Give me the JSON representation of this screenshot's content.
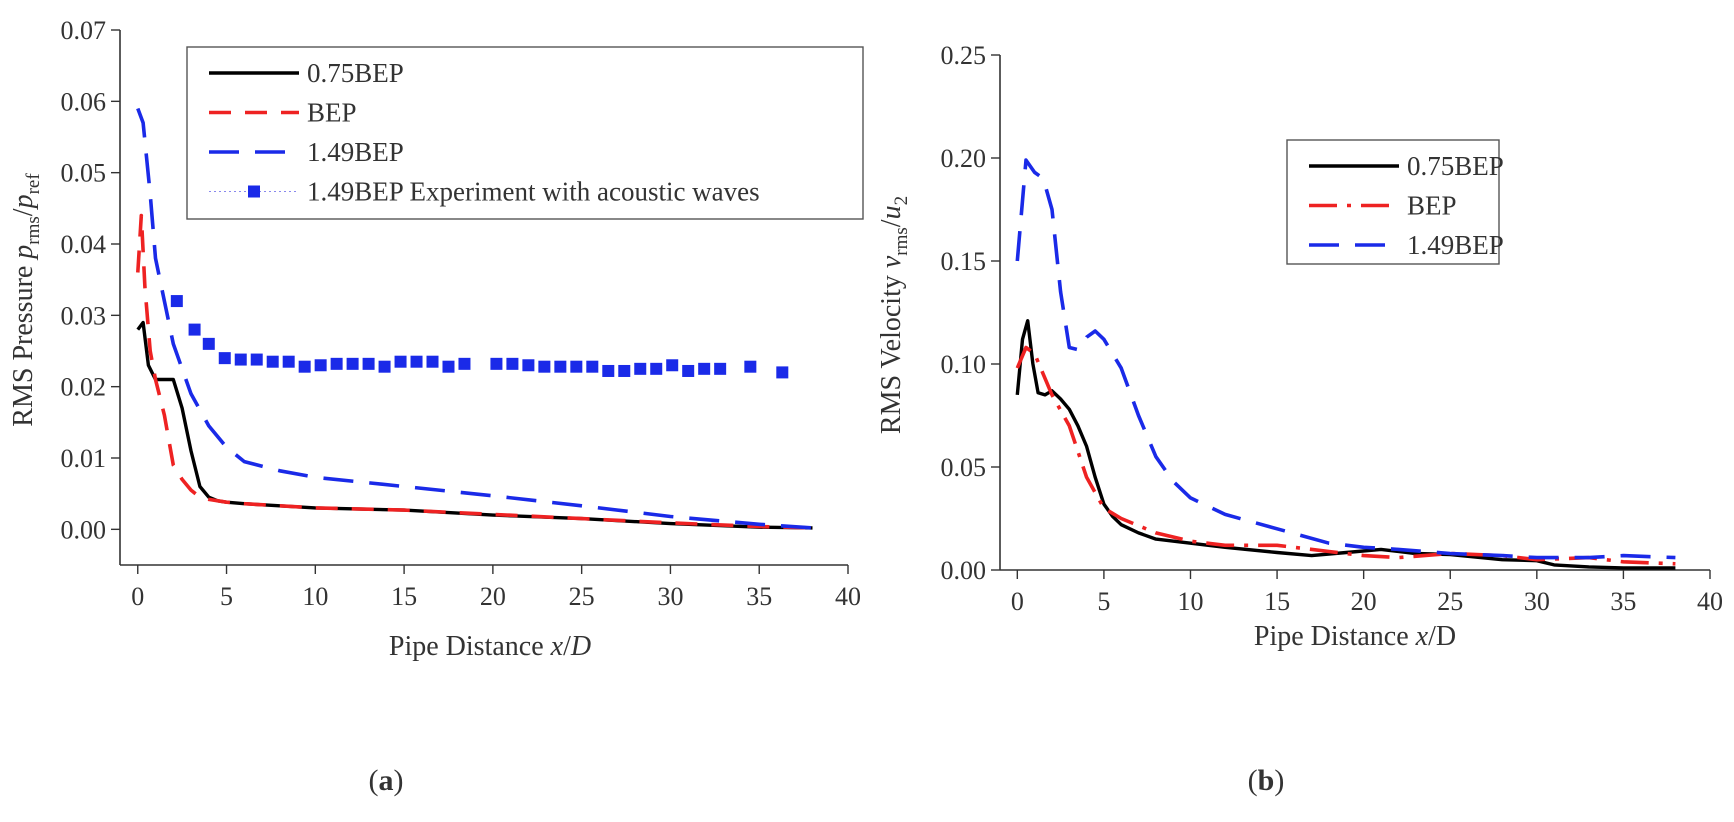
{
  "chart_data": [
    {
      "type": "line",
      "panel_label": "a",
      "xlabel": {
        "prefix": "Pipe Distance ",
        "var": "x",
        "sep": "/",
        "unit": "D"
      },
      "ylabel": {
        "prefix": "RMS Pressure ",
        "var1": "p",
        "sub1": "rms",
        "sep": "/",
        "var2": "p",
        "sub2": "ref"
      },
      "xlim": [
        -1,
        40
      ],
      "ylim": [
        -0.005,
        0.07
      ],
      "xticks": [
        "0",
        "5",
        "10",
        "15",
        "20",
        "25",
        "30",
        "35",
        "40"
      ],
      "yticks": [
        "0.00",
        "0.01",
        "0.02",
        "0.03",
        "0.04",
        "0.05",
        "0.06",
        "0.07"
      ],
      "legend_position": "top-right",
      "series": [
        {
          "name": "0.75BEP",
          "color": "#000000",
          "style": "solid",
          "x": [
            0,
            0.3,
            0.6,
            1.0,
            1.5,
            2.0,
            2.5,
            3.0,
            3.5,
            4.0,
            4.5,
            5,
            6,
            8,
            10,
            15,
            20,
            25,
            30,
            35,
            38
          ],
          "y": [
            0.028,
            0.029,
            0.023,
            0.021,
            0.021,
            0.021,
            0.017,
            0.011,
            0.006,
            0.0045,
            0.004,
            0.0038,
            0.0036,
            0.0033,
            0.003,
            0.0027,
            0.002,
            0.0015,
            0.0008,
            0.0003,
            0.0002
          ]
        },
        {
          "name": "BEP",
          "color": "#ee2222",
          "style": "dash",
          "x": [
            0,
            0.2,
            0.4,
            0.7,
            1.0,
            1.5,
            2.0,
            2.5,
            3.0,
            3.5,
            4,
            5,
            6,
            8,
            10,
            15,
            20,
            25,
            30,
            35,
            38
          ],
          "y": [
            0.036,
            0.044,
            0.034,
            0.025,
            0.021,
            0.016,
            0.009,
            0.007,
            0.0055,
            0.0045,
            0.0042,
            0.0038,
            0.0036,
            0.0033,
            0.003,
            0.0027,
            0.0021,
            0.0015,
            0.0009,
            0.0004,
            0.0002
          ]
        },
        {
          "name": "1.49BEP",
          "color": "#1a2ae8",
          "style": "longdash",
          "x": [
            0,
            0.3,
            0.7,
            1.0,
            1.5,
            2.0,
            3.0,
            4.0,
            5,
            6,
            8,
            10,
            15,
            20,
            25,
            30,
            35,
            38
          ],
          "y": [
            0.059,
            0.057,
            0.047,
            0.038,
            0.032,
            0.026,
            0.019,
            0.0145,
            0.0115,
            0.0095,
            0.0082,
            0.0073,
            0.006,
            0.0047,
            0.0033,
            0.0018,
            0.0007,
            0.0002
          ]
        },
        {
          "name": "1.49BEP Experiment with acoustic waves",
          "color": "#1a2ae8",
          "style": "markers",
          "x": [
            2.2,
            3.2,
            4.0,
            4.9,
            5.8,
            6.7,
            7.6,
            8.5,
            9.4,
            10.3,
            11.2,
            12.1,
            13.0,
            13.9,
            14.8,
            15.7,
            16.6,
            17.5,
            18.4,
            20.2,
            21.1,
            22.0,
            22.9,
            23.8,
            24.7,
            25.6,
            26.5,
            27.4,
            28.3,
            29.2,
            30.1,
            31.0,
            31.9,
            32.8,
            34.5,
            36.3
          ],
          "y": [
            0.032,
            0.028,
            0.026,
            0.024,
            0.0238,
            0.0238,
            0.0235,
            0.0235,
            0.0228,
            0.023,
            0.0232,
            0.0232,
            0.0232,
            0.0228,
            0.0235,
            0.0235,
            0.0235,
            0.0228,
            0.0232,
            0.0232,
            0.0232,
            0.023,
            0.0228,
            0.0228,
            0.0228,
            0.0228,
            0.0222,
            0.0222,
            0.0225,
            0.0225,
            0.023,
            0.0222,
            0.0225,
            0.0225,
            0.0228,
            0.022
          ]
        }
      ]
    },
    {
      "type": "line",
      "panel_label": "b",
      "xlabel": {
        "prefix": "Pipe Distance ",
        "var": "x",
        "sep": "/",
        "unit": "D"
      },
      "ylabel": {
        "prefix": "RMS Velocity ",
        "var1": "v",
        "sub1": "rms",
        "sep": "/",
        "var2": "u",
        "sub2": "2"
      },
      "xlim": [
        -1,
        40
      ],
      "ylim": [
        0,
        0.25
      ],
      "xticks": [
        "0",
        "5",
        "10",
        "15",
        "20",
        "25",
        "30",
        "35",
        "40"
      ],
      "yticks": [
        "0.00",
        "0.05",
        "0.10",
        "0.15",
        "0.20",
        "0.25"
      ],
      "legend_position": "upper-right",
      "series": [
        {
          "name": "0.75BEP",
          "color": "#000000",
          "style": "solid",
          "x": [
            0,
            0.3,
            0.6,
            0.9,
            1.2,
            1.6,
            2.0,
            2.5,
            3.0,
            3.5,
            4.0,
            4.5,
            5.0,
            5.5,
            6,
            7,
            8,
            10,
            12,
            15,
            17,
            19,
            21,
            23,
            25,
            28,
            30,
            31,
            33,
            35,
            38
          ],
          "y": [
            0.085,
            0.112,
            0.121,
            0.1,
            0.086,
            0.085,
            0.087,
            0.083,
            0.078,
            0.07,
            0.06,
            0.045,
            0.032,
            0.026,
            0.022,
            0.018,
            0.015,
            0.013,
            0.011,
            0.0085,
            0.007,
            0.0085,
            0.01,
            0.008,
            0.0075,
            0.005,
            0.0045,
            0.0025,
            0.0015,
            0.001,
            0.001
          ]
        },
        {
          "name": "BEP",
          "color": "#ee2222",
          "style": "dashdot",
          "x": [
            0,
            0.5,
            1.0,
            1.5,
            2,
            3,
            4,
            5,
            6,
            8,
            10,
            12,
            15,
            18,
            20,
            22,
            25,
            28,
            30,
            33,
            35,
            38
          ],
          "y": [
            0.098,
            0.108,
            0.105,
            0.095,
            0.085,
            0.07,
            0.045,
            0.03,
            0.025,
            0.018,
            0.014,
            0.012,
            0.012,
            0.009,
            0.007,
            0.006,
            0.008,
            0.007,
            0.005,
            0.006,
            0.004,
            0.003
          ]
        },
        {
          "name": "1.49BEP",
          "color": "#1a2ae8",
          "style": "longdash",
          "x": [
            0,
            0.5,
            1.0,
            1.5,
            2.0,
            2.5,
            3.0,
            3.5,
            4.0,
            4.5,
            5,
            6,
            7,
            8,
            9,
            10,
            12,
            15,
            18,
            20,
            22,
            25,
            28,
            30,
            33,
            35,
            38
          ],
          "y": [
            0.15,
            0.199,
            0.193,
            0.19,
            0.175,
            0.135,
            0.108,
            0.107,
            0.113,
            0.116,
            0.112,
            0.098,
            0.075,
            0.055,
            0.043,
            0.035,
            0.027,
            0.02,
            0.013,
            0.011,
            0.01,
            0.008,
            0.007,
            0.006,
            0.006,
            0.007,
            0.006
          ]
        }
      ]
    }
  ]
}
